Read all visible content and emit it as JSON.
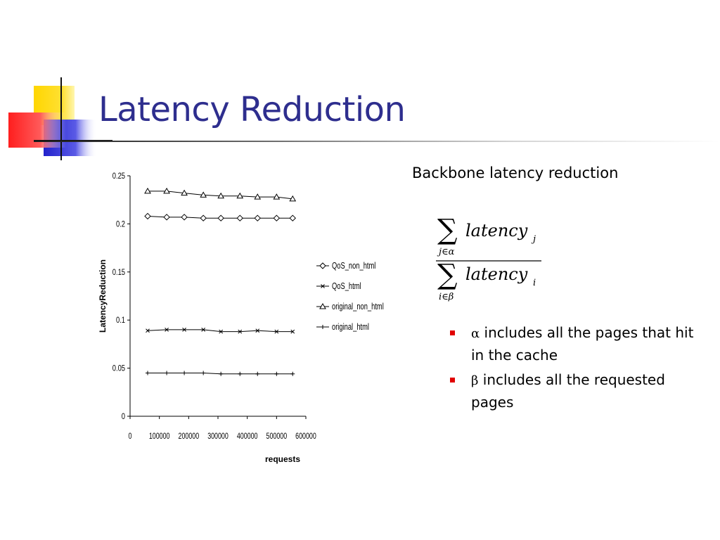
{
  "slide": {
    "title": "Latency Reduction",
    "subtitle": "Backbone latency reduction",
    "colors": {
      "title": "#2e2e8e",
      "bullet_marker": "#e10000",
      "logo_yellow": "#ffd600",
      "logo_red": "#ff2a2a",
      "logo_blue": "#2c2cd6"
    },
    "icon": "logo-squares-icon"
  },
  "formula": {
    "numerator_text": "latency",
    "numerator_subscript": "j",
    "numerator_sum_index": "j∈α",
    "denominator_text": "latency",
    "denominator_subscript": "i",
    "denominator_sum_index": "i∈β"
  },
  "bullets": [
    {
      "symbol": "α",
      "text": "includes all the pages that hit in the cache"
    },
    {
      "symbol": "β",
      "text": "includes all the requested pages"
    }
  ],
  "chart_data": {
    "type": "line",
    "xlabel": "requests",
    "ylabel": "LatencyReduction",
    "xlim": [
      0,
      600000
    ],
    "ylim": [
      0,
      0.25
    ],
    "x_tick_labels": [
      "0",
      "100000",
      "200000",
      "300000",
      "400000",
      "500000",
      "600000"
    ],
    "y_tick_labels": [
      "0",
      "0.05",
      "0.1",
      "0.15",
      "0.2",
      "0.25"
    ],
    "legend_position": "right",
    "x": [
      60000,
      125000,
      185000,
      250000,
      310000,
      375000,
      435000,
      500000,
      555000
    ],
    "series": [
      {
        "name": "QoS_non_html",
        "marker": "diamond",
        "values": [
          0.208,
          0.207,
          0.207,
          0.206,
          0.206,
          0.206,
          0.206,
          0.206,
          0.206
        ]
      },
      {
        "name": "QoS_html",
        "marker": "x",
        "values": [
          0.089,
          0.09,
          0.09,
          0.09,
          0.088,
          0.088,
          0.089,
          0.088,
          0.088
        ]
      },
      {
        "name": "original_non_html",
        "marker": "triangle",
        "values": [
          0.234,
          0.234,
          0.232,
          0.23,
          0.229,
          0.229,
          0.228,
          0.228,
          0.226
        ]
      },
      {
        "name": "original_html",
        "marker": "plus",
        "values": [
          0.045,
          0.045,
          0.045,
          0.045,
          0.044,
          0.044,
          0.044,
          0.044,
          0.044
        ]
      }
    ]
  }
}
